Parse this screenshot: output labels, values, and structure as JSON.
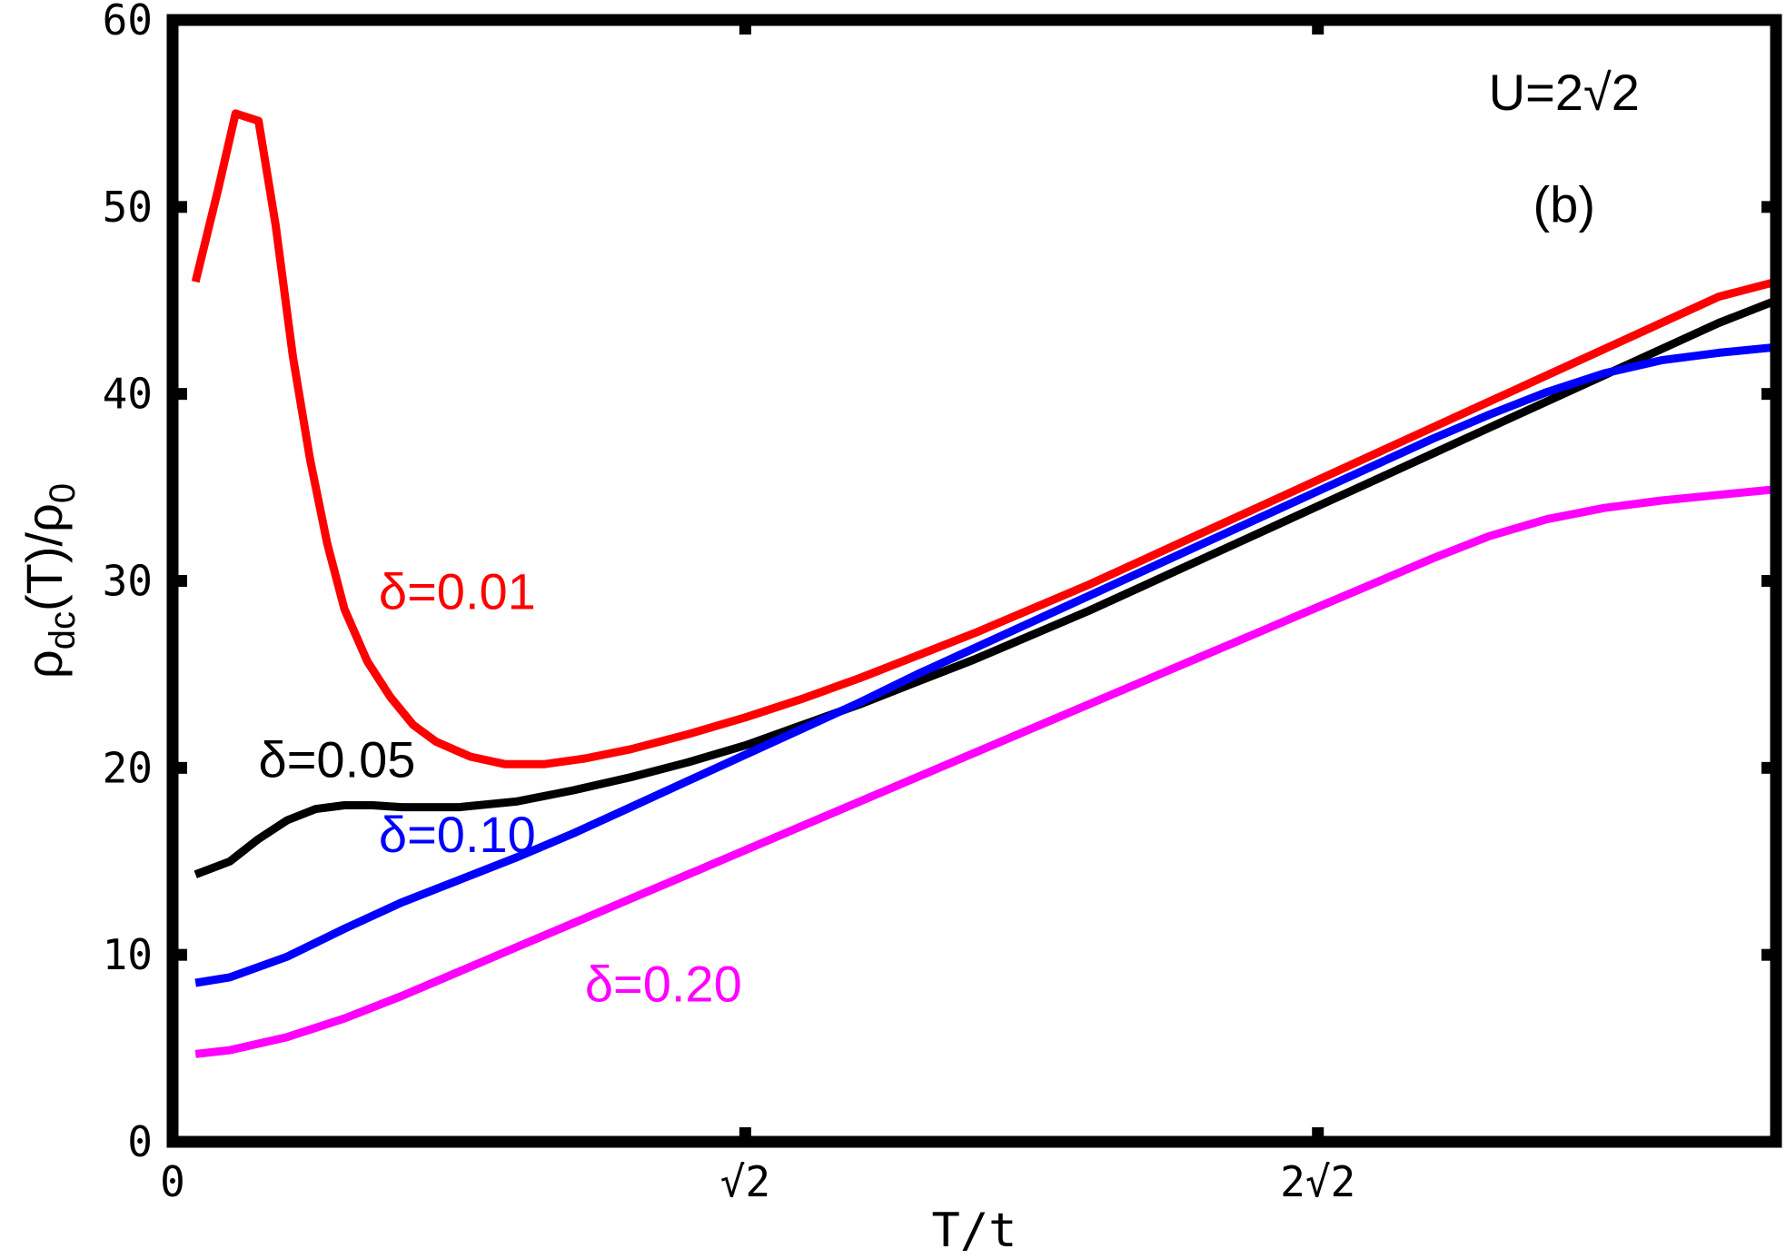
{
  "chart_data": {
    "type": "line",
    "xlabel": "T/t",
    "ylabel": {
      "base": "ρ",
      "sub": "dc",
      "mid": "(T)/ρ",
      "sub2": "0"
    },
    "xlim": [
      0,
      2.8
    ],
    "ylim": [
      0,
      60
    ],
    "x_ticks": [
      {
        "value": 0,
        "label": "0"
      },
      {
        "value": 1.0,
        "label": "√2"
      },
      {
        "value": 2.0,
        "label": "2√2"
      }
    ],
    "y_ticks": [
      {
        "value": 0,
        "label": "0"
      },
      {
        "value": 10,
        "label": "10"
      },
      {
        "value": 20,
        "label": "20"
      },
      {
        "value": 30,
        "label": "30"
      },
      {
        "value": 40,
        "label": "40"
      },
      {
        "value": 50,
        "label": "50"
      },
      {
        "value": 60,
        "label": "60"
      }
    ],
    "grid": false,
    "annotations": [
      {
        "text": "U=2√2",
        "x": 2.43,
        "y": 55.2,
        "color": "#000000"
      },
      {
        "text": "(b)",
        "x": 2.43,
        "y": 49.2,
        "color": "#000000"
      }
    ],
    "series": [
      {
        "name": "δ=0.01",
        "color": "#ff0000",
        "label_pos": {
          "x": 0.36,
          "y": 28.5
        },
        "x": [
          0.04,
          0.08,
          0.11,
          0.15,
          0.18,
          0.21,
          0.24,
          0.27,
          0.3,
          0.34,
          0.38,
          0.42,
          0.46,
          0.52,
          0.58,
          0.65,
          0.72,
          0.8,
          0.9,
          1.0,
          1.1,
          1.2,
          1.3,
          1.4,
          1.5,
          1.6,
          1.7,
          1.8,
          1.9,
          2.0,
          2.1,
          2.2,
          2.3,
          2.4,
          2.5,
          2.6,
          2.7,
          2.8
        ],
        "y": [
          46.0,
          51.0,
          55.0,
          54.6,
          49.0,
          42.0,
          36.5,
          32.0,
          28.5,
          25.7,
          23.8,
          22.3,
          21.4,
          20.6,
          20.2,
          20.2,
          20.5,
          21.0,
          21.8,
          22.7,
          23.7,
          24.8,
          26.0,
          27.2,
          28.5,
          29.8,
          31.2,
          32.6,
          34.0,
          35.4,
          36.8,
          38.2,
          39.6,
          41.0,
          42.4,
          43.8,
          45.2,
          46.0
        ]
      },
      {
        "name": "δ=0.05",
        "color": "#000000",
        "label_pos": {
          "x": 0.15,
          "y": 19.5
        },
        "x": [
          0.04,
          0.1,
          0.15,
          0.2,
          0.25,
          0.3,
          0.35,
          0.4,
          0.5,
          0.6,
          0.7,
          0.8,
          0.9,
          1.0,
          1.1,
          1.2,
          1.3,
          1.4,
          1.5,
          1.6,
          1.7,
          1.8,
          1.9,
          2.0,
          2.1,
          2.2,
          2.3,
          2.4,
          2.5,
          2.6,
          2.7,
          2.8
        ],
        "y": [
          14.3,
          15.0,
          16.2,
          17.2,
          17.8,
          18.0,
          18.0,
          17.9,
          17.9,
          18.2,
          18.8,
          19.5,
          20.3,
          21.2,
          22.3,
          23.4,
          24.6,
          25.8,
          27.1,
          28.4,
          29.8,
          31.2,
          32.6,
          34.0,
          35.4,
          36.8,
          38.2,
          39.6,
          41.0,
          42.4,
          43.8,
          45.0
        ]
      },
      {
        "name": "δ=0.10",
        "color": "#0000ff",
        "label_pos": {
          "x": 0.36,
          "y": 15.5
        },
        "x": [
          0.04,
          0.1,
          0.2,
          0.3,
          0.4,
          0.5,
          0.6,
          0.7,
          0.8,
          0.9,
          1.0,
          1.1,
          1.2,
          1.3,
          1.4,
          1.5,
          1.6,
          1.7,
          1.8,
          1.9,
          2.0,
          2.1,
          2.2,
          2.3,
          2.4,
          2.5,
          2.6,
          2.7,
          2.8
        ],
        "y": [
          8.5,
          8.8,
          9.9,
          11.4,
          12.8,
          14.0,
          15.2,
          16.5,
          17.9,
          19.3,
          20.7,
          22.1,
          23.5,
          25.0,
          26.4,
          27.8,
          29.2,
          30.6,
          32.0,
          33.4,
          34.8,
          36.2,
          37.6,
          38.9,
          40.1,
          41.1,
          41.8,
          42.2,
          42.5
        ]
      },
      {
        "name": "δ=0.20",
        "color": "#ff00ff",
        "label_pos": {
          "x": 0.72,
          "y": 7.5
        },
        "x": [
          0.04,
          0.1,
          0.2,
          0.3,
          0.4,
          0.5,
          0.6,
          0.7,
          0.8,
          0.9,
          1.0,
          1.1,
          1.2,
          1.3,
          1.4,
          1.5,
          1.6,
          1.7,
          1.8,
          1.9,
          2.0,
          2.1,
          2.2,
          2.3,
          2.4,
          2.5,
          2.6,
          2.7,
          2.8
        ],
        "y": [
          4.7,
          4.9,
          5.6,
          6.6,
          7.8,
          9.1,
          10.4,
          11.7,
          13.0,
          14.3,
          15.6,
          16.9,
          18.2,
          19.5,
          20.8,
          22.1,
          23.4,
          24.7,
          26.0,
          27.3,
          28.6,
          29.9,
          31.2,
          32.4,
          33.3,
          33.9,
          34.3,
          34.6,
          34.9
        ]
      }
    ]
  }
}
